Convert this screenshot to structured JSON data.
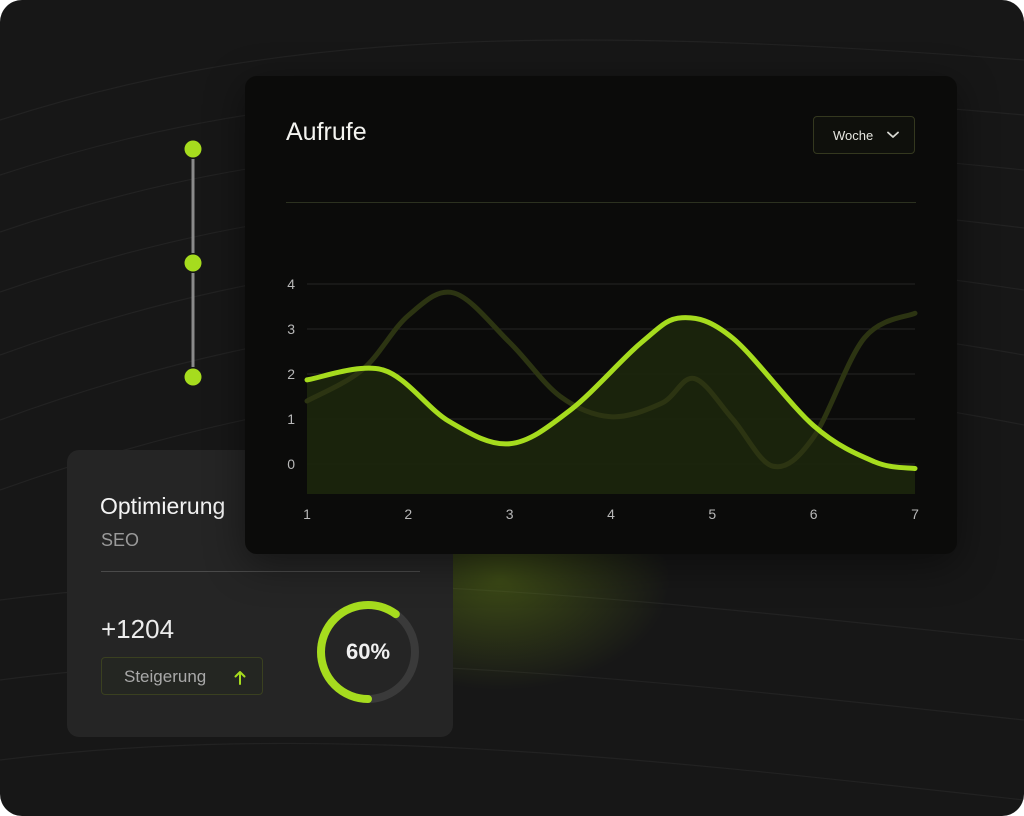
{
  "colors": {
    "accent": "#a6dc1e",
    "secondary_line": "#2c3412",
    "area_fill": "#1c260c",
    "card_bg": "#0b0b0a",
    "panel_bg": "#252525"
  },
  "timeline": {
    "node_count": 3
  },
  "chart_card": {
    "title": "Aufrufe",
    "dropdown": {
      "selected": "Woche",
      "icon": "chevron-down-icon"
    }
  },
  "chart_data": {
    "type": "line",
    "x": [
      1,
      2,
      3,
      4,
      5,
      6,
      7
    ],
    "xlim": [
      1,
      7
    ],
    "ylim": [
      0,
      4
    ],
    "y_ticks": [
      0,
      1,
      2,
      3,
      4
    ],
    "grid": true,
    "series": [
      {
        "role": "primary",
        "filled": true,
        "points": [
          [
            1,
            1.87
          ],
          [
            1.75,
            2.09
          ],
          [
            2.4,
            0.95
          ],
          [
            3.0,
            0.45
          ],
          [
            3.6,
            1.2
          ],
          [
            4.3,
            2.7
          ],
          [
            4.7,
            3.25
          ],
          [
            5.2,
            2.8
          ],
          [
            6.0,
            0.85
          ],
          [
            6.6,
            0.05
          ],
          [
            7,
            -0.1
          ]
        ]
      },
      {
        "role": "secondary",
        "filled": false,
        "points": [
          [
            1,
            1.4
          ],
          [
            1.55,
            2.1
          ],
          [
            2.0,
            3.3
          ],
          [
            2.45,
            3.8
          ],
          [
            3.0,
            2.7
          ],
          [
            3.5,
            1.5
          ],
          [
            4.0,
            1.05
          ],
          [
            4.5,
            1.35
          ],
          [
            4.82,
            1.9
          ],
          [
            5.2,
            1.0
          ],
          [
            5.6,
            -0.05
          ],
          [
            6.0,
            0.6
          ],
          [
            6.5,
            2.8
          ],
          [
            7,
            3.35
          ]
        ]
      }
    ]
  },
  "seo_card": {
    "title": "Optimierung",
    "subtitle": "SEO",
    "value": "+1204",
    "badge_label": "Steigerung",
    "badge_icon": "arrow-up-icon",
    "progress": {
      "percent": 60,
      "label": "60%"
    }
  }
}
